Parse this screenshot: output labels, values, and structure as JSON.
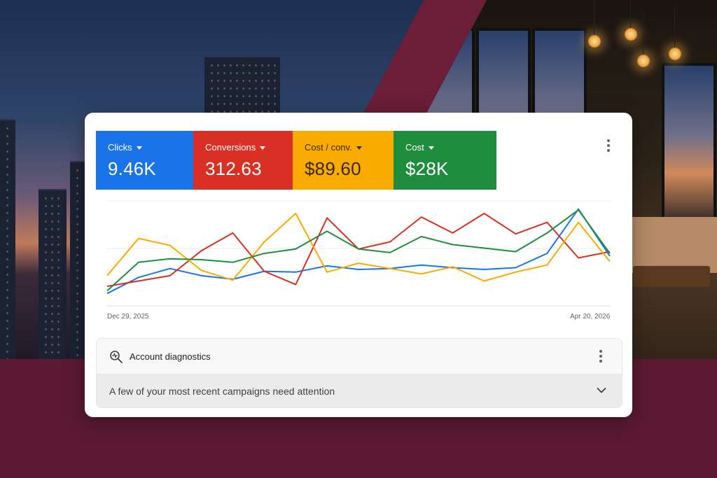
{
  "colors": {
    "clicks": "#1a73e8",
    "conversions": "#d93025",
    "cost_per_conv": "#f9ab00",
    "cost": "#1e8e3e"
  },
  "metrics": [
    {
      "label": "Clicks",
      "value": "9.46K"
    },
    {
      "label": "Conversions",
      "value": "312.63"
    },
    {
      "label": "Cost / conv.",
      "value": "$89.60"
    },
    {
      "label": "Cost",
      "value": "$28K"
    }
  ],
  "chart_data": {
    "type": "line",
    "x_start_label": "Dec 29, 2025",
    "x_end_label": "Apr 20, 2026",
    "grid": true,
    "legend": "none",
    "series": [
      {
        "color": "#1a73e8",
        "values": [
          0.1,
          0.28,
          0.38,
          0.3,
          0.26,
          0.35,
          0.34,
          0.41,
          0.37,
          0.38,
          0.42,
          0.39,
          0.37,
          0.39,
          0.55,
          1.05,
          0.52
        ]
      },
      {
        "color": "#d93025",
        "values": [
          0.18,
          0.24,
          0.3,
          0.58,
          0.78,
          0.35,
          0.2,
          0.95,
          0.6,
          0.68,
          0.96,
          0.78,
          1.0,
          0.77,
          0.9,
          0.5,
          0.57
        ]
      },
      {
        "color": "#f9ab00",
        "values": [
          0.3,
          0.72,
          0.64,
          0.36,
          0.25,
          0.68,
          1.0,
          0.34,
          0.44,
          0.38,
          0.32,
          0.4,
          0.24,
          0.34,
          0.42,
          0.9,
          0.46
        ]
      },
      {
        "color": "#1e8e3e",
        "values": [
          0.13,
          0.45,
          0.49,
          0.48,
          0.45,
          0.55,
          0.6,
          0.8,
          0.6,
          0.56,
          0.74,
          0.65,
          0.61,
          0.57,
          0.78,
          1.04,
          0.55
        ]
      }
    ]
  },
  "diagnostics": {
    "title": "Account diagnostics",
    "message": "A few of your most recent campaigns need attention",
    "icon": "diagnostics-search-icon"
  }
}
